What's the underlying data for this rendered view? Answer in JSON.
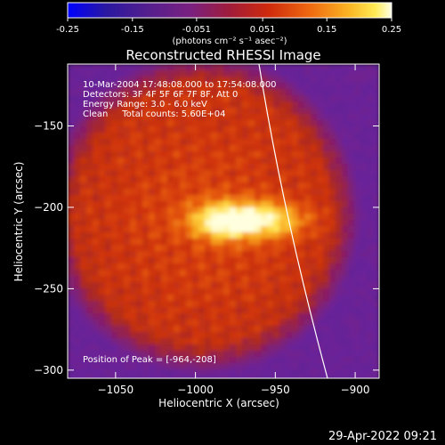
{
  "colorbar": {
    "ticks": [
      "-0.25",
      "-0.15",
      "-0.051",
      "0.051",
      "0.15",
      "0.25"
    ],
    "units": "(photons cm⁻² s⁻¹ asec⁻²)",
    "min": -0.25,
    "max": 0.25
  },
  "chart_data": {
    "type": "heatmap",
    "title": "Reconstructed RHESSI Image",
    "xlabel": "Heliocentric X (arcsec)",
    "ylabel": "Heliocentric Y (arcsec)",
    "xlim": [
      -1080,
      -885
    ],
    "ylim": [
      -305,
      -112
    ],
    "xticks": [
      -1050,
      -1000,
      -950,
      -900
    ],
    "yticks": [
      -150,
      -200,
      -250,
      -300
    ],
    "xtick_labels": [
      "−1050",
      "−1000",
      "−950",
      "−900"
    ],
    "ytick_labels": [
      "−150",
      "−200",
      "−250",
      "−300"
    ],
    "peak": {
      "x": -964,
      "y": -208
    },
    "annotations": {
      "time_range": "10-Mar-2004 17:48:08.000 to 17:54:08.000",
      "detectors": "Detectors: 3F 4F 5F 6F 7F 8F, Att 0",
      "energy": "Energy Range: 3.0 - 6.0 keV",
      "clean": "Clean     Total counts: 5.60E+04",
      "peak_position": "Position of Peak = [-964,-208]"
    }
  },
  "footer": {
    "timestamp": "29-Apr-2022 09:21"
  },
  "colors": {
    "background": "#000000",
    "frame": "#ffffff",
    "limb": "#ffffff",
    "colormap": [
      "#0000ff",
      "#2a1aa0",
      "#4d1f86",
      "#6a229a",
      "#8a1f63",
      "#b02b1c",
      "#d0340b",
      "#e85e0e",
      "#f7a11d",
      "#ffe04a",
      "#ffffdf"
    ]
  }
}
